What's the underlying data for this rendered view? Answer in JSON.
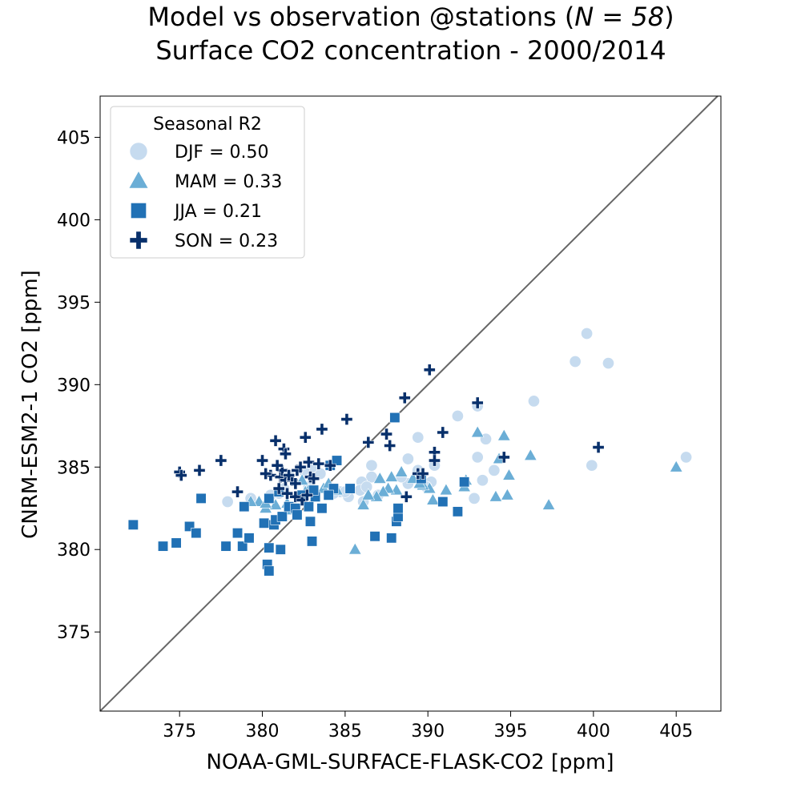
{
  "chart_data": {
    "type": "scatter",
    "title": "Model vs observation @stations (N = 58)",
    "title_prefix": "Model vs observation @stations (",
    "title_n": "N = 58",
    "title_suffix": ")",
    "subtitle": "Surface CO2 concentration - 2000/2014",
    "xlabel": "NOAA-GML-SURFACE-FLASK-CO2 [ppm]",
    "ylabel": "CNRM-ESM2-1 CO2 [ppm]",
    "xlim": [
      370.2,
      407.7
    ],
    "ylim": [
      370.2,
      407.5
    ],
    "xticks": [
      375,
      380,
      385,
      390,
      395,
      400,
      405
    ],
    "yticks": [
      375,
      380,
      385,
      390,
      395,
      400,
      405
    ],
    "grid": false,
    "identity_line": true,
    "identity_line_color": "#666666",
    "legend": {
      "title": "Seasonal R2",
      "placement": "top-left"
    },
    "series": [
      {
        "name": "DJF = 0.50",
        "marker": "circle",
        "color": "#c6dbef",
        "points": [
          [
            399.6,
            393.1
          ],
          [
            398.9,
            391.4
          ],
          [
            400.9,
            391.3
          ],
          [
            396.4,
            389.0
          ],
          [
            393,
            388.7
          ],
          [
            391.8,
            388.1
          ],
          [
            389.4,
            386.8
          ],
          [
            393.5,
            386.7
          ],
          [
            386.6,
            385.1
          ],
          [
            393,
            385.6
          ],
          [
            399.9,
            385.1
          ],
          [
            405.6,
            385.6
          ],
          [
            388.8,
            385.5
          ],
          [
            389.4,
            384.8
          ],
          [
            394,
            384.8
          ],
          [
            393.3,
            384.2
          ],
          [
            392.8,
            383.1
          ],
          [
            390.2,
            384.1
          ],
          [
            388.8,
            384
          ],
          [
            386.6,
            384.4
          ],
          [
            386,
            384.1
          ],
          [
            385.9,
            383.6
          ],
          [
            385.2,
            383.2
          ],
          [
            384.7,
            383.5
          ],
          [
            384.3,
            383.4
          ],
          [
            383.5,
            384.6
          ],
          [
            383,
            385
          ],
          [
            382.5,
            384.8
          ],
          [
            381.6,
            384.5
          ],
          [
            381,
            383.4
          ],
          [
            379.3,
            383.1
          ],
          [
            377.9,
            382.9
          ],
          [
            386.1,
            382.9
          ],
          [
            387,
            383.3
          ],
          [
            385,
            383.5
          ],
          [
            389.9,
            383.8
          ],
          [
            388.4,
            384.4
          ],
          [
            390.4,
            385.1
          ],
          [
            386.3,
            383.8
          ],
          [
            382.8,
            383.8
          ],
          [
            381.3,
            383.7
          ],
          [
            380.5,
            383.3
          ]
        ]
      },
      {
        "name": "MAM = 0.33",
        "marker": "triangle",
        "color": "#6baed6",
        "points": [
          [
            405,
            385
          ],
          [
            396.2,
            385.7
          ],
          [
            394.6,
            386.9
          ],
          [
            393,
            387.1
          ],
          [
            394.3,
            385.5
          ],
          [
            397.3,
            382.7
          ],
          [
            394.9,
            384.5
          ],
          [
            394.8,
            383.3
          ],
          [
            394.1,
            383.2
          ],
          [
            392.3,
            384.2
          ],
          [
            392.2,
            383.8
          ],
          [
            391.1,
            383.6
          ],
          [
            390.3,
            383
          ],
          [
            390.1,
            383.7
          ],
          [
            389.7,
            383.9
          ],
          [
            389.5,
            384.0
          ],
          [
            388.4,
            384.7
          ],
          [
            388.1,
            383.6
          ],
          [
            387.8,
            384.4
          ],
          [
            387.6,
            383.7
          ],
          [
            387.3,
            383.5
          ],
          [
            386.9,
            383.2
          ],
          [
            386.1,
            382.7
          ],
          [
            386.4,
            383.3
          ],
          [
            385.6,
            380
          ],
          [
            384.5,
            383.6
          ],
          [
            383.7,
            383.7
          ],
          [
            382.8,
            383.6
          ],
          [
            381.5,
            382.8
          ],
          [
            380.8,
            382.7
          ],
          [
            380.2,
            382.5
          ],
          [
            379.8,
            382.9
          ],
          [
            379.3,
            382.9
          ],
          [
            380.2,
            382.8
          ],
          [
            381.8,
            382.4
          ],
          [
            382.6,
            383.5
          ],
          [
            387.1,
            384.3
          ],
          [
            389.1,
            384.3
          ],
          [
            382.4,
            384.2
          ],
          [
            384,
            384
          ]
        ]
      },
      {
        "name": "JJA = 0.21",
        "marker": "square",
        "color": "#2171b5",
        "points": [
          [
            372.2,
            381.5
          ],
          [
            374,
            380.2
          ],
          [
            374.8,
            380.4
          ],
          [
            375.6,
            381.4
          ],
          [
            376,
            381
          ],
          [
            376.3,
            383.1
          ],
          [
            377.8,
            380.2
          ],
          [
            378.5,
            381
          ],
          [
            378.8,
            380.2
          ],
          [
            378.9,
            382.6
          ],
          [
            379.2,
            380.7
          ],
          [
            380.1,
            381.6
          ],
          [
            380.3,
            379.1
          ],
          [
            380.4,
            378.7
          ],
          [
            380.4,
            380.1
          ],
          [
            380.7,
            381.5
          ],
          [
            380.8,
            381.8
          ],
          [
            381.1,
            380
          ],
          [
            381.2,
            382
          ],
          [
            381.6,
            382.6
          ],
          [
            382,
            382.5
          ],
          [
            382.4,
            383.3
          ],
          [
            382.8,
            382.6
          ],
          [
            382.9,
            381.7
          ],
          [
            383,
            380.5
          ],
          [
            383.2,
            383.2
          ],
          [
            383.6,
            382.5
          ],
          [
            384.3,
            383.7
          ],
          [
            384.1,
            385.1
          ],
          [
            384.5,
            385.4
          ],
          [
            385.3,
            383.7
          ],
          [
            386.8,
            380.8
          ],
          [
            387.8,
            380.7
          ],
          [
            388.1,
            381.7
          ],
          [
            388.2,
            382
          ],
          [
            388.2,
            382.5
          ],
          [
            388,
            388
          ],
          [
            389.6,
            384.3
          ],
          [
            390.9,
            382.9
          ],
          [
            391.8,
            382.3
          ],
          [
            392.2,
            384.1
          ],
          [
            380.4,
            383.1
          ],
          [
            381,
            383.5
          ],
          [
            382.1,
            382.1
          ],
          [
            383.1,
            383.6
          ],
          [
            384,
            383.3
          ]
        ]
      },
      {
        "name": "SON = 0.23",
        "marker": "plus",
        "color": "#08306b",
        "points": [
          [
            375,
            384.7
          ],
          [
            375.1,
            384.5
          ],
          [
            376.2,
            384.8
          ],
          [
            377.5,
            385.4
          ],
          [
            378.5,
            383.5
          ],
          [
            380,
            385.4
          ],
          [
            380.8,
            386.6
          ],
          [
            381.3,
            386.1
          ],
          [
            381.4,
            385.8
          ],
          [
            382.6,
            386.8
          ],
          [
            383.6,
            387.3
          ],
          [
            385.1,
            387.9
          ],
          [
            386.4,
            386.5
          ],
          [
            387.5,
            387
          ],
          [
            388.6,
            389.2
          ],
          [
            390.1,
            390.9
          ],
          [
            393,
            388.9
          ],
          [
            390.9,
            387.1
          ],
          [
            387.7,
            386.3
          ],
          [
            390.4,
            385.9
          ],
          [
            390.4,
            385.4
          ],
          [
            389.4,
            384.6
          ],
          [
            389.7,
            384.6
          ],
          [
            388.7,
            383.2
          ],
          [
            394.6,
            385.6
          ],
          [
            400.3,
            386.2
          ],
          [
            380.5,
            384.5
          ],
          [
            381.1,
            384.4
          ],
          [
            381.4,
            384.2
          ],
          [
            381.8,
            384.2
          ],
          [
            382.1,
            384.8
          ],
          [
            382.3,
            385
          ],
          [
            382.8,
            385.3
          ],
          [
            383.4,
            385.2
          ],
          [
            384.1,
            385.1
          ],
          [
            381,
            383.7
          ],
          [
            381.5,
            383.4
          ],
          [
            382,
            383.2
          ],
          [
            382.4,
            383.0
          ],
          [
            382.9,
            384.4
          ],
          [
            383.1,
            384.3
          ],
          [
            380.2,
            384.6
          ],
          [
            381.2,
            384.8
          ],
          [
            381.6,
            384.5
          ],
          [
            382,
            384.0
          ],
          [
            380.9,
            385.1
          ],
          [
            382.7,
            383.3
          ]
        ]
      }
    ]
  }
}
